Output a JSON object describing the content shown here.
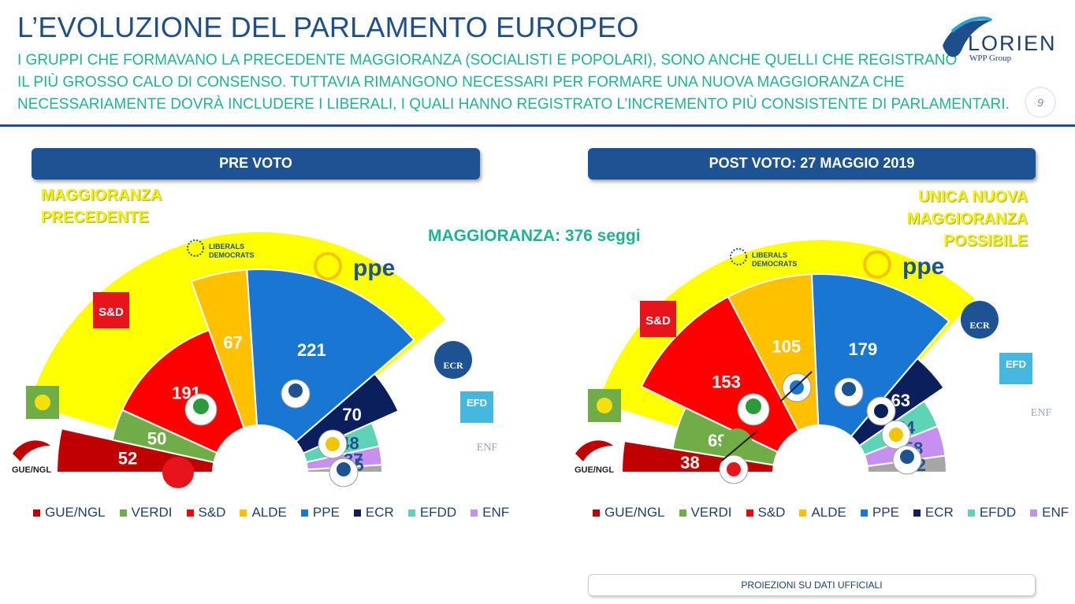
{
  "header": {
    "title": "L’EVOLUZIONE DEL PARLAMENTO EUROPEO",
    "subtitle_lines": [
      "I GRUPPI CHE FORMAVANO LA PRECEDENTE MAGGIORANZA (SOCIALISTI E POPOLARI), SONO ANCHE QUELLI CHE REGISTRANO",
      "IL PIÙ GROSSO CALO DI CONSENSO. TUTTAVIA RIMANGONO NECESSARI PER FORMARE UNA NUOVA MAGGIORANZA CHE",
      "NECESSARIAMENTE DOVRÀ INCLUDERE I LIBERALI, I QUALI HANNO REGISTRATO L’INCREMENTO PIÙ CONSISTENTE DI PARLAMENTARI."
    ],
    "logo_name": "LORIEN",
    "logo_sub": "WPP Group",
    "page_number": "9"
  },
  "majority_label": "MAGGIORANZA: 376 seggi",
  "left_panel": {
    "heading": "PRE VOTO",
    "yellow_label_1": "MAGGIORANZA",
    "yellow_label_2": "PRECEDENTE"
  },
  "right_panel": {
    "heading": "POST VOTO: 27 MAGGIO 2019",
    "yellow_label_1": "UNICA NUOVA",
    "yellow_label_2": "MAGGIORANZA",
    "yellow_label_3": "POSSIBILE"
  },
  "footnote": "PROIEZIONI SU DATI UFFICIALI",
  "party_labels": {
    "sd": "S&D",
    "gue": "GUE/NGL",
    "ecr": "ECR",
    "efd": "EFD",
    "enf": "ENF",
    "ppe": "ppe",
    "alde_1": "LIBERALS",
    "alde_2": "DEMOCRATS"
  },
  "colors": {
    "GUE/NGL": "#c00000",
    "VERDI": "#70ad47",
    "S&D": "#ff0000",
    "ALDE": "#ffc000",
    "PPE": "#1976d2",
    "ECR": "#0b1f5c",
    "EFDD": "#5fd3b5",
    "ENF": "#c690f0",
    "other": "#a6a6a6",
    "majority_band": "#ffff00"
  },
  "chart_data": [
    {
      "type": "pie",
      "title": "PRE VOTO",
      "categories": [
        "GUE/NGL",
        "VERDI",
        "S&D",
        "ALDE",
        "PPE",
        "ECR",
        "EFDD",
        "ENF",
        "other"
      ],
      "values": [
        52,
        50,
        191,
        67,
        221,
        70,
        48,
        37,
        15
      ],
      "highlighted_majority": [
        "S&D",
        "ALDE",
        "PPE"
      ]
    },
    {
      "type": "pie",
      "title": "POST VOTO: 27 MAGGIO 2019",
      "categories": [
        "GUE/NGL",
        "VERDI",
        "S&D",
        "ALDE",
        "PPE",
        "ECR",
        "EFDD",
        "ENF",
        "other"
      ],
      "values": [
        38,
        69,
        153,
        105,
        179,
        63,
        54,
        58,
        32
      ],
      "highlighted_majority": [
        "S&D",
        "ALDE",
        "PPE"
      ]
    }
  ],
  "legend": [
    "GUE/NGL",
    "VERDI",
    "S&D",
    "ALDE",
    "PPE",
    "ECR",
    "EFDD",
    "ENF"
  ]
}
